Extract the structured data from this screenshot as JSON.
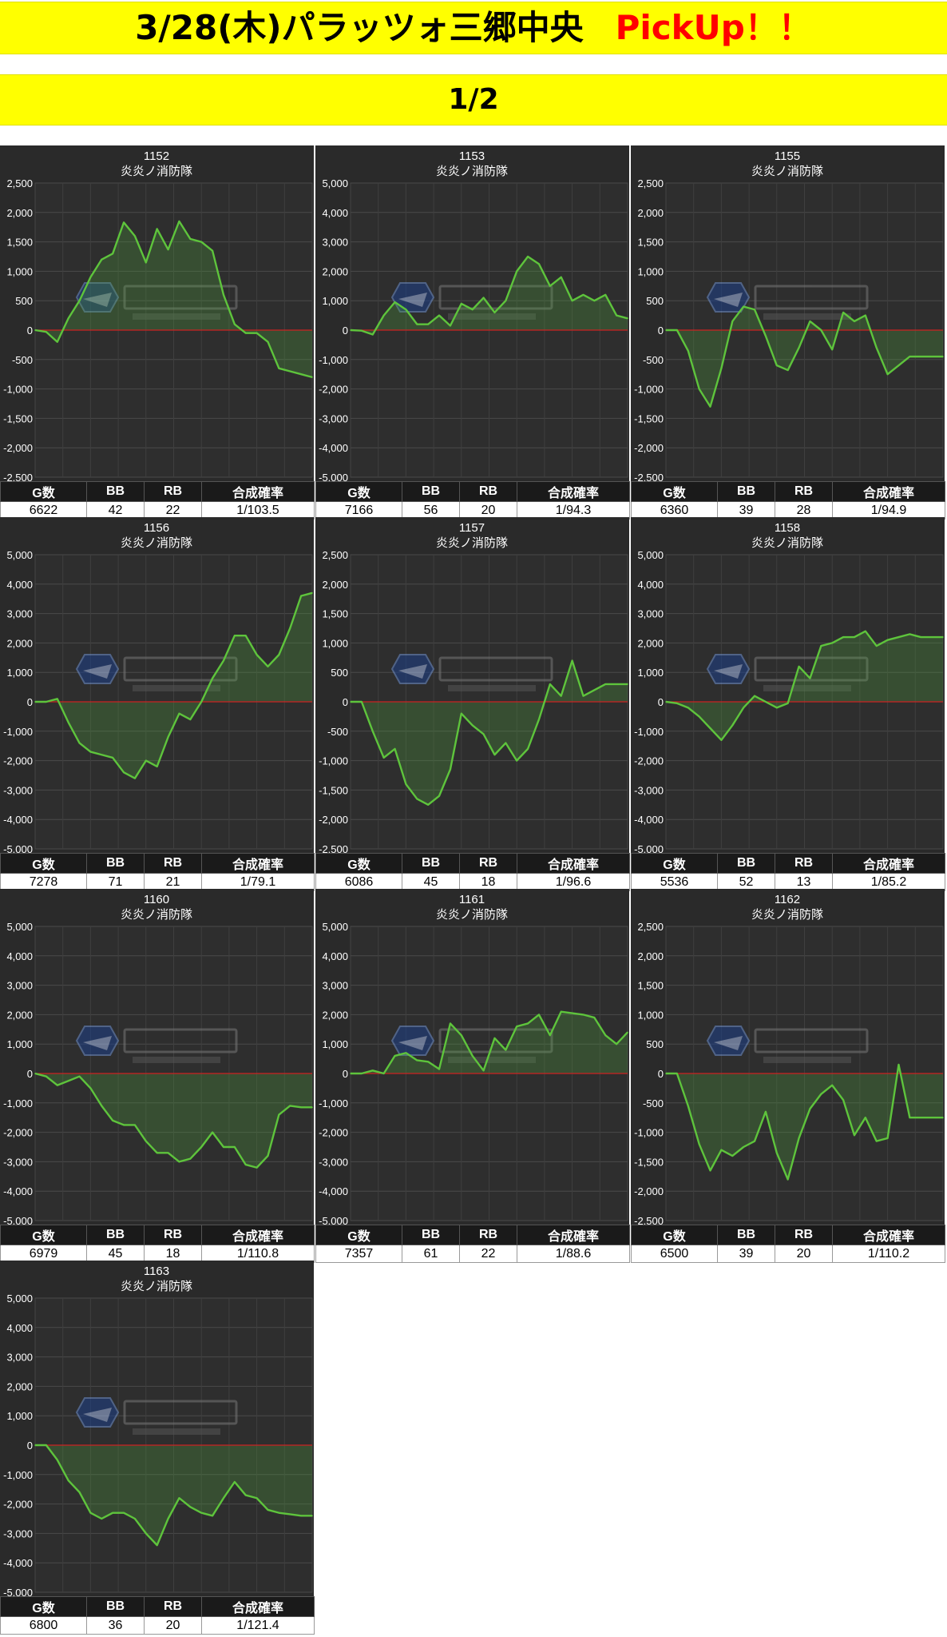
{
  "header": {
    "title": "3/28(木)パラッツォ三郷中央",
    "pickup": "PickUp！！",
    "page": "1/2"
  },
  "colors": {
    "banner": "#ffff00",
    "line": "#5ec43c",
    "zero_line": "#cc2222",
    "panel_bg": "#2a2a2a"
  },
  "stat_headers": {
    "g": "G数",
    "bb": "BB",
    "rb": "RB",
    "rate": "合成確率"
  },
  "chart_data": [
    {
      "type": "area",
      "machine": "1152",
      "title": "炎炎ノ消防隊",
      "ylim": [
        -2500,
        2500
      ],
      "ticks": [
        "2,500",
        "2,000",
        "1,500",
        "1,000",
        "500",
        "0",
        "-500",
        "-1,000",
        "-1,500",
        "-2,000",
        "-2,500"
      ],
      "x": [
        0,
        4,
        8,
        12,
        16,
        20,
        24,
        28,
        32,
        36,
        40,
        44,
        48,
        52,
        56,
        60,
        64,
        68,
        72,
        76,
        80,
        84,
        88,
        92,
        96,
        100
      ],
      "values": [
        0,
        -30,
        -200,
        200,
        500,
        900,
        1200,
        1300,
        1830,
        1600,
        1150,
        1720,
        1370,
        1850,
        1550,
        1500,
        1350,
        600,
        100,
        -50,
        -50,
        -200,
        -650,
        -700,
        -750,
        -800
      ],
      "g": "6622",
      "bb": "42",
      "rb": "22",
      "rate": "1/103.5"
    },
    {
      "type": "area",
      "machine": "1153",
      "title": "炎炎ノ消防隊",
      "ylim": [
        -5000,
        5000
      ],
      "ticks": [
        "5,000",
        "4,000",
        "3,000",
        "2,000",
        "1,000",
        "0",
        "-1,000",
        "-2,000",
        "-3,000",
        "-4,000",
        "-5,000"
      ],
      "x": [
        0,
        4,
        8,
        12,
        16,
        20,
        24,
        28,
        32,
        36,
        40,
        44,
        48,
        52,
        56,
        60,
        64,
        68,
        72,
        76,
        80,
        84,
        88,
        92,
        96,
        100
      ],
      "values": [
        0,
        -20,
        -150,
        500,
        950,
        700,
        200,
        200,
        500,
        150,
        900,
        700,
        1100,
        600,
        1000,
        2000,
        2500,
        2250,
        1500,
        1800,
        1000,
        1200,
        1000,
        1200,
        500,
        400
      ],
      "g": "7166",
      "bb": "56",
      "rb": "20",
      "rate": "1/94.3"
    },
    {
      "type": "area",
      "machine": "1155",
      "title": "炎炎ノ消防隊",
      "ylim": [
        -2500,
        2500
      ],
      "ticks": [
        "2,500",
        "2,000",
        "1,500",
        "1,000",
        "500",
        "0",
        "-500",
        "-1,000",
        "-1,500",
        "-2,000",
        "-2,500"
      ],
      "x": [
        0,
        4,
        8,
        12,
        16,
        20,
        24,
        28,
        32,
        36,
        40,
        44,
        48,
        52,
        56,
        60,
        64,
        68,
        72,
        76,
        80,
        84,
        88,
        92,
        96,
        100
      ],
      "values": [
        0,
        0,
        -350,
        -1000,
        -1300,
        -650,
        150,
        400,
        350,
        -100,
        -600,
        -680,
        -300,
        150,
        0,
        -330,
        300,
        150,
        250,
        -300,
        -750,
        -600,
        -450,
        -450,
        -450,
        -450
      ],
      "g": "6360",
      "bb": "39",
      "rb": "28",
      "rate": "1/94.9"
    },
    {
      "type": "area",
      "machine": "1156",
      "title": "炎炎ノ消防隊",
      "ylim": [
        -5000,
        5000
      ],
      "ticks": [
        "5,000",
        "4,000",
        "3,000",
        "2,000",
        "1,000",
        "0",
        "-1,000",
        "-2,000",
        "-3,000",
        "-4,000",
        "-5,000"
      ],
      "x": [
        0,
        4,
        8,
        12,
        16,
        20,
        24,
        28,
        32,
        36,
        40,
        44,
        48,
        52,
        56,
        60,
        64,
        68,
        72,
        76,
        80,
        84,
        88,
        92,
        96,
        100
      ],
      "values": [
        0,
        0,
        100,
        -700,
        -1400,
        -1700,
        -1800,
        -1900,
        -2400,
        -2600,
        -2000,
        -2200,
        -1200,
        -400,
        -600,
        0,
        800,
        1400,
        2250,
        2250,
        1600,
        1200,
        1600,
        2500,
        3600,
        3700
      ],
      "g": "7278",
      "bb": "71",
      "rb": "21",
      "rate": "1/79.1"
    },
    {
      "type": "area",
      "machine": "1157",
      "title": "炎炎ノ消防隊",
      "ylim": [
        -2500,
        2500
      ],
      "ticks": [
        "2,500",
        "2,000",
        "1,500",
        "1,000",
        "500",
        "0",
        "-500",
        "-1,000",
        "-1,500",
        "-2,000",
        "-2,500"
      ],
      "x": [
        0,
        4,
        8,
        12,
        16,
        20,
        24,
        28,
        32,
        36,
        40,
        44,
        48,
        52,
        56,
        60,
        64,
        68,
        72,
        76,
        80,
        84,
        88,
        92,
        96,
        100
      ],
      "values": [
        0,
        0,
        -500,
        -950,
        -800,
        -1400,
        -1650,
        -1750,
        -1600,
        -1150,
        -200,
        -400,
        -550,
        -900,
        -700,
        -1000,
        -800,
        -300,
        300,
        100,
        700,
        100,
        200,
        300,
        300,
        300
      ],
      "g": "6086",
      "bb": "45",
      "rb": "18",
      "rate": "1/96.6"
    },
    {
      "type": "area",
      "machine": "1158",
      "title": "炎炎ノ消防隊",
      "ylim": [
        -5000,
        5000
      ],
      "ticks": [
        "5,000",
        "4,000",
        "3,000",
        "2,000",
        "1,000",
        "0",
        "-1,000",
        "-2,000",
        "-3,000",
        "-4,000",
        "-5,000"
      ],
      "x": [
        0,
        4,
        8,
        12,
        16,
        20,
        24,
        28,
        32,
        36,
        40,
        44,
        48,
        52,
        56,
        60,
        64,
        68,
        72,
        76,
        80,
        84,
        88,
        92,
        96,
        100
      ],
      "values": [
        0,
        -50,
        -200,
        -500,
        -900,
        -1300,
        -800,
        -200,
        200,
        0,
        -200,
        -50,
        1200,
        800,
        1900,
        2000,
        2200,
        2200,
        2400,
        1900,
        2100,
        2200,
        2300,
        2200,
        2200,
        2200
      ],
      "g": "5536",
      "bb": "52",
      "rb": "13",
      "rate": "1/85.2"
    },
    {
      "type": "area",
      "machine": "1160",
      "title": "炎炎ノ消防隊",
      "ylim": [
        -5000,
        5000
      ],
      "ticks": [
        "5,000",
        "4,000",
        "3,000",
        "2,000",
        "1,000",
        "0",
        "-1,000",
        "-2,000",
        "-3,000",
        "-4,000",
        "-5,000"
      ],
      "x": [
        0,
        4,
        8,
        12,
        16,
        20,
        24,
        28,
        32,
        36,
        40,
        44,
        48,
        52,
        56,
        60,
        64,
        68,
        72,
        76,
        80,
        84,
        88,
        92,
        96,
        100
      ],
      "values": [
        0,
        -100,
        -400,
        -250,
        -100,
        -500,
        -1100,
        -1600,
        -1750,
        -1750,
        -2300,
        -2700,
        -2700,
        -3000,
        -2900,
        -2500,
        -2000,
        -2500,
        -2500,
        -3100,
        -3200,
        -2800,
        -1400,
        -1100,
        -1150,
        -1150
      ],
      "g": "6979",
      "bb": "45",
      "rb": "18",
      "rate": "1/110.8"
    },
    {
      "type": "area",
      "machine": "1161",
      "title": "炎炎ノ消防隊",
      "ylim": [
        -5000,
        5000
      ],
      "ticks": [
        "5,000",
        "4,000",
        "3,000",
        "2,000",
        "1,000",
        "0",
        "-1,000",
        "-2,000",
        "-3,000",
        "-4,000",
        "-5,000"
      ],
      "x": [
        0,
        4,
        8,
        12,
        16,
        20,
        24,
        28,
        32,
        36,
        40,
        44,
        48,
        52,
        56,
        60,
        64,
        68,
        72,
        76,
        80,
        84,
        88,
        92,
        96,
        100
      ],
      "values": [
        0,
        0,
        100,
        0,
        600,
        700,
        450,
        400,
        150,
        1700,
        1300,
        600,
        100,
        1200,
        800,
        1600,
        1700,
        2000,
        1300,
        2100,
        2050,
        2000,
        1900,
        1300,
        1000,
        1400
      ],
      "g": "7357",
      "bb": "61",
      "rb": "22",
      "rate": "1/88.6"
    },
    {
      "type": "area",
      "machine": "1162",
      "title": "炎炎ノ消防隊",
      "ylim": [
        -2500,
        2500
      ],
      "ticks": [
        "2,500",
        "2,000",
        "1,500",
        "1,000",
        "500",
        "0",
        "-500",
        "-1,000",
        "-1,500",
        "-2,000",
        "-2,500"
      ],
      "x": [
        0,
        4,
        8,
        12,
        16,
        20,
        24,
        28,
        32,
        36,
        40,
        44,
        48,
        52,
        56,
        60,
        64,
        68,
        72,
        76,
        80,
        84,
        88,
        92,
        96,
        100
      ],
      "values": [
        0,
        0,
        -550,
        -1200,
        -1650,
        -1300,
        -1400,
        -1250,
        -1150,
        -650,
        -1350,
        -1800,
        -1100,
        -600,
        -350,
        -200,
        -450,
        -1050,
        -750,
        -1150,
        -1100,
        150,
        -750,
        -750,
        -750,
        -750
      ],
      "g": "6500",
      "bb": "39",
      "rb": "20",
      "rate": "1/110.2"
    },
    {
      "type": "area",
      "machine": "1163",
      "title": "炎炎ノ消防隊",
      "ylim": [
        -5000,
        5000
      ],
      "ticks": [
        "5,000",
        "4,000",
        "3,000",
        "2,000",
        "1,000",
        "0",
        "-1,000",
        "-2,000",
        "-3,000",
        "-4,000",
        "-5,000"
      ],
      "x": [
        0,
        4,
        8,
        12,
        16,
        20,
        24,
        28,
        32,
        36,
        40,
        44,
        48,
        52,
        56,
        60,
        64,
        68,
        72,
        76,
        80,
        84,
        88,
        92,
        96,
        100
      ],
      "values": [
        0,
        0,
        -500,
        -1200,
        -1600,
        -2300,
        -2500,
        -2300,
        -2300,
        -2500,
        -3000,
        -3400,
        -2500,
        -1800,
        -2100,
        -2300,
        -2400,
        -1800,
        -1250,
        -1700,
        -1800,
        -2200,
        -2300,
        -2350,
        -2400,
        -2400
      ],
      "g": "6800",
      "bb": "36",
      "rb": "20",
      "rate": "1/121.4"
    }
  ]
}
